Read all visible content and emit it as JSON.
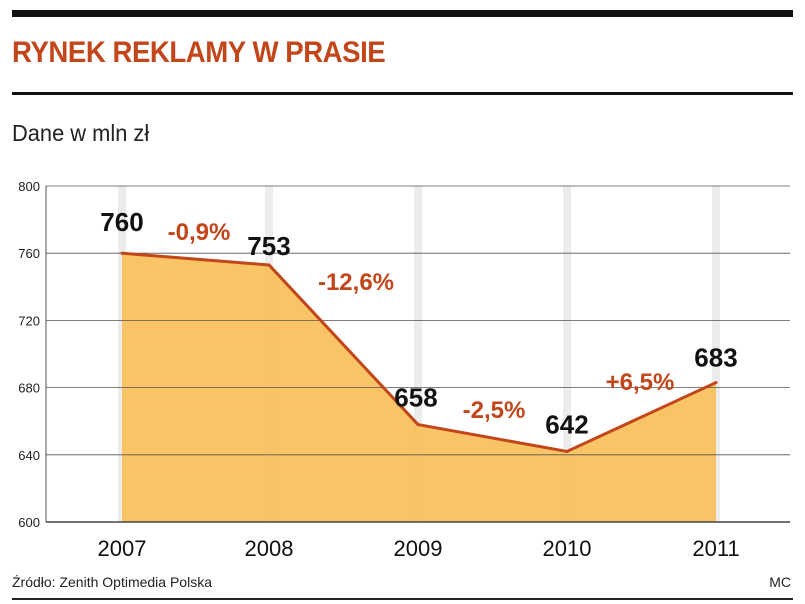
{
  "header": {
    "title": "RYNEK REKLAMY W PRASIE",
    "subtitle": "Dane w mln zł"
  },
  "footer": {
    "source": "Źródło: Zenith Optimedia Polska",
    "credit": "MC"
  },
  "colors": {
    "title": "#c2461a",
    "line": "#c2461a",
    "area": "#f9bf59",
    "change_label": "#c2461a",
    "grid": "#cfcfcf"
  },
  "chart_data": {
    "type": "area",
    "title": "RYNEK REKLAMY W PRASIE",
    "subtitle": "Dane w mln zł",
    "xlabel": "",
    "ylabel": "",
    "categories": [
      "2007",
      "2008",
      "2009",
      "2010",
      "2011"
    ],
    "values": [
      760,
      753,
      658,
      642,
      683
    ],
    "value_labels": [
      "760",
      "753",
      "658",
      "642",
      "683"
    ],
    "changes": [
      "-0,9%",
      "-12,6%",
      "-2,5%",
      "+6,5%"
    ],
    "ylim": [
      600,
      800
    ],
    "yticks": [
      600,
      640,
      680,
      720,
      760,
      800
    ],
    "grid": true
  }
}
